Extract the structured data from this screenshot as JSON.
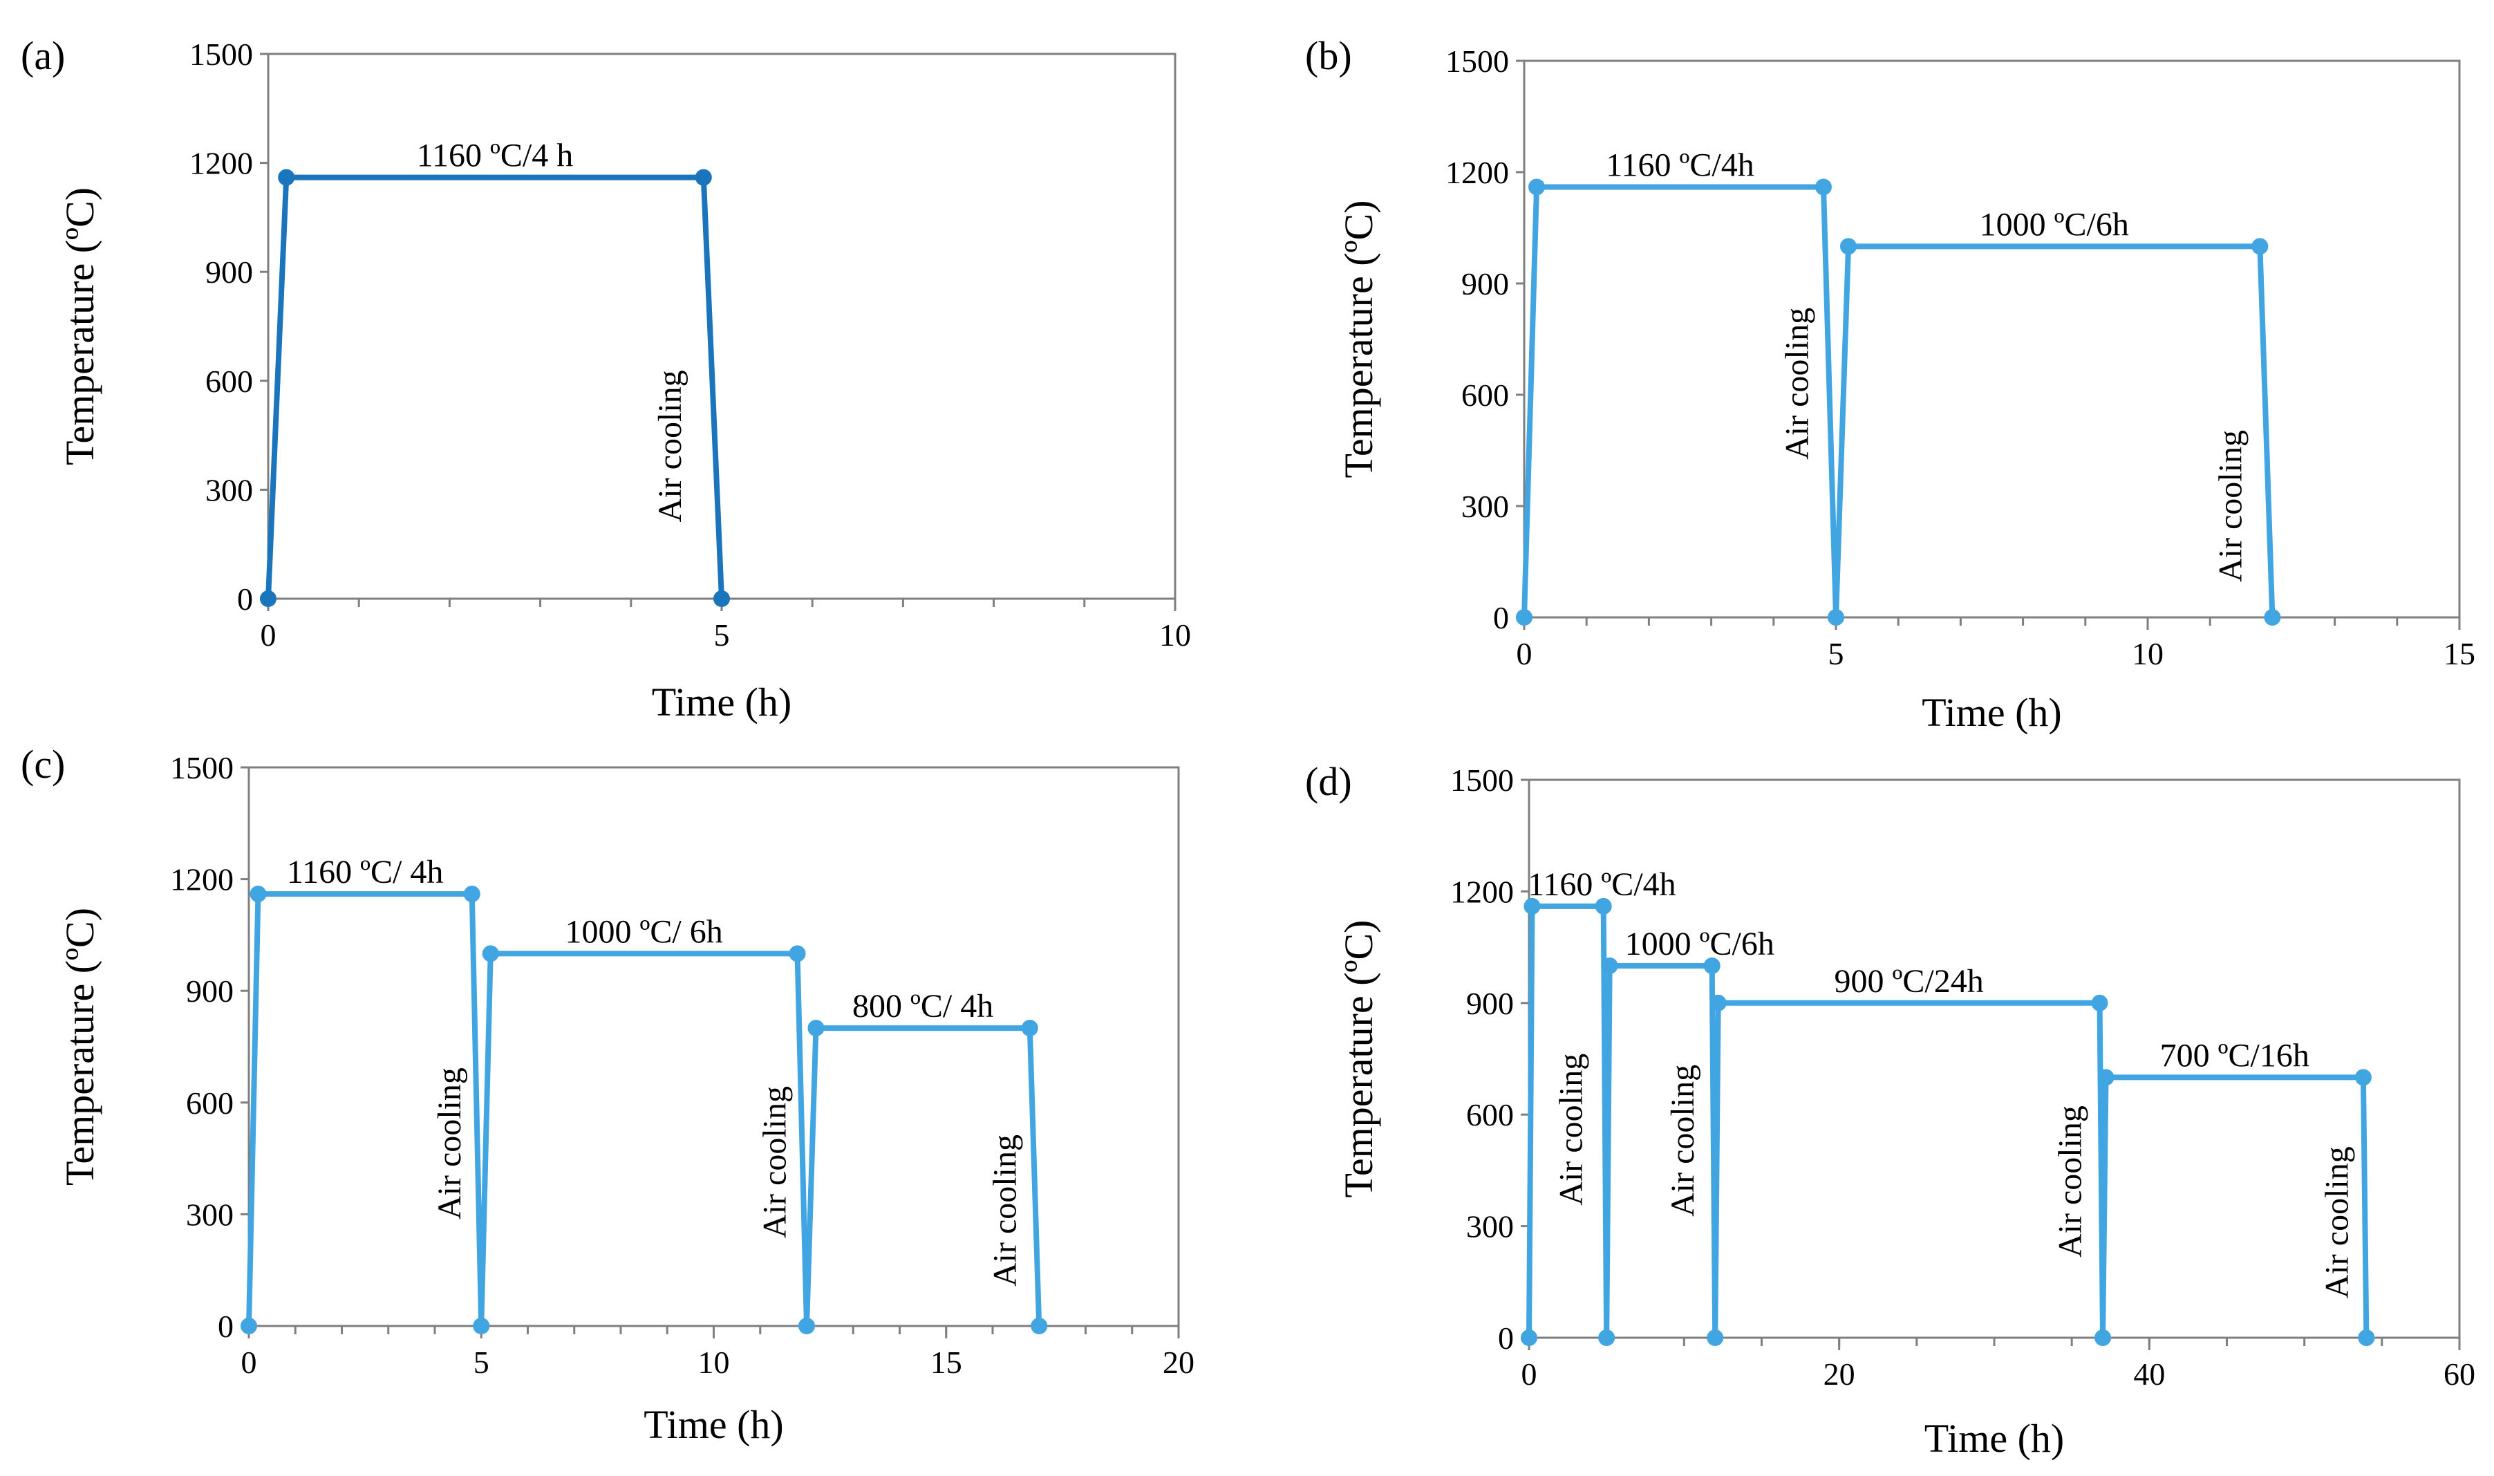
{
  "figure": {
    "charts": [
      "a",
      "b",
      "c",
      "d"
    ]
  },
  "chart_data": [
    {
      "id": "a",
      "type": "line",
      "panel_label": "(a)",
      "xlabel": "Time (h)",
      "ylabel": "Temperature (ºC)",
      "xlim": [
        0,
        10
      ],
      "ylim": [
        0,
        1500
      ],
      "xticks": [
        0,
        5,
        10
      ],
      "yticks": [
        0,
        300,
        600,
        900,
        1200,
        1500
      ],
      "minor_x_step": 1,
      "color": "#1b75bc",
      "x": [
        0,
        0.2,
        4.8,
        5.0
      ],
      "y": [
        0,
        1160,
        1160,
        0
      ],
      "hold_labels": [
        {
          "text": "1160 ºC/4 h",
          "x": 2.5,
          "y": 1160
        }
      ],
      "cooling_labels": [
        {
          "text": "Air cooling",
          "x": 4.55,
          "y": 420
        }
      ]
    },
    {
      "id": "b",
      "type": "line",
      "panel_label": "(b)",
      "xlabel": "Time (h)",
      "ylabel": "Temperature (ºC)",
      "xlim": [
        0,
        15
      ],
      "ylim": [
        0,
        1500
      ],
      "xticks": [
        0,
        5,
        10,
        15
      ],
      "yticks": [
        0,
        300,
        600,
        900,
        1200,
        1500
      ],
      "minor_x_step": 1,
      "color": "#41a5e1",
      "x": [
        0,
        0.2,
        4.8,
        5.0,
        5.2,
        11.8,
        12.0
      ],
      "y": [
        0,
        1160,
        1160,
        0,
        1000,
        1000,
        0
      ],
      "hold_labels": [
        {
          "text": "1160 ºC/4h",
          "x": 2.5,
          "y": 1160
        },
        {
          "text": "1000 ºC/6h",
          "x": 8.5,
          "y": 1000
        }
      ],
      "cooling_labels": [
        {
          "text": "Air cooling",
          "x": 4.55,
          "y": 630
        },
        {
          "text": "Air cooling",
          "x": 11.5,
          "y": 300
        }
      ]
    },
    {
      "id": "c",
      "type": "line",
      "panel_label": "(c)",
      "xlabel": "Time (h)",
      "ylabel": "Temperature (ºC)",
      "xlim": [
        0,
        20
      ],
      "ylim": [
        0,
        1500
      ],
      "xticks": [
        0,
        5,
        10,
        15,
        20
      ],
      "yticks": [
        0,
        300,
        600,
        900,
        1200,
        1500
      ],
      "minor_x_step": 1,
      "color": "#41a5e1",
      "x": [
        0,
        0.2,
        4.8,
        5.0,
        5.2,
        11.8,
        12.0,
        12.2,
        16.8,
        17.0
      ],
      "y": [
        0,
        1160,
        1160,
        0,
        1000,
        1000,
        0,
        800,
        800,
        0
      ],
      "hold_labels": [
        {
          "text": "1160 ºC/ 4h",
          "x": 2.5,
          "y": 1160
        },
        {
          "text": "1000 ºC/ 6h",
          "x": 8.5,
          "y": 1000
        },
        {
          "text": "800 ºC/ 4h",
          "x": 14.5,
          "y": 800
        }
      ],
      "cooling_labels": [
        {
          "text": "Air cooling",
          "x": 4.55,
          "y": 490
        },
        {
          "text": "Air cooling",
          "x": 11.55,
          "y": 440
        },
        {
          "text": "Air cooling",
          "x": 16.5,
          "y": 310
        }
      ]
    },
    {
      "id": "d",
      "type": "line",
      "panel_label": "(d)",
      "xlabel": "Time (h)",
      "ylabel": "Temperature (ºC)",
      "xlim": [
        0,
        60
      ],
      "ylim": [
        0,
        1500
      ],
      "xticks": [
        0,
        20,
        40,
        60
      ],
      "yticks": [
        0,
        300,
        600,
        900,
        1200,
        1500
      ],
      "minor_x_step": 5,
      "color": "#41a5e1",
      "x": [
        0,
        0.2,
        4.8,
        5.0,
        5.2,
        11.8,
        12.0,
        12.2,
        36.8,
        37.0,
        37.2,
        53.8,
        54.0
      ],
      "y": [
        0,
        1160,
        1160,
        0,
        1000,
        1000,
        0,
        900,
        900,
        0,
        700,
        700,
        0
      ],
      "hold_labels": [
        {
          "text": "1160 ºC/4h",
          "x": 4.7,
          "y": 1160
        },
        {
          "text": "1000 ºC/6h",
          "x": 11.0,
          "y": 1000
        },
        {
          "text": "900 ºC/24h",
          "x": 24.5,
          "y": 900
        },
        {
          "text": "700 ºC/16h",
          "x": 45.5,
          "y": 700
        }
      ],
      "cooling_labels": [
        {
          "text": "Air cooling",
          "x": 3.4,
          "y": 560
        },
        {
          "text": "Air cooling",
          "x": 10.6,
          "y": 530
        },
        {
          "text": "Air cooling",
          "x": 35.6,
          "y": 420
        },
        {
          "text": "Air cooling",
          "x": 52.8,
          "y": 310
        }
      ]
    }
  ]
}
